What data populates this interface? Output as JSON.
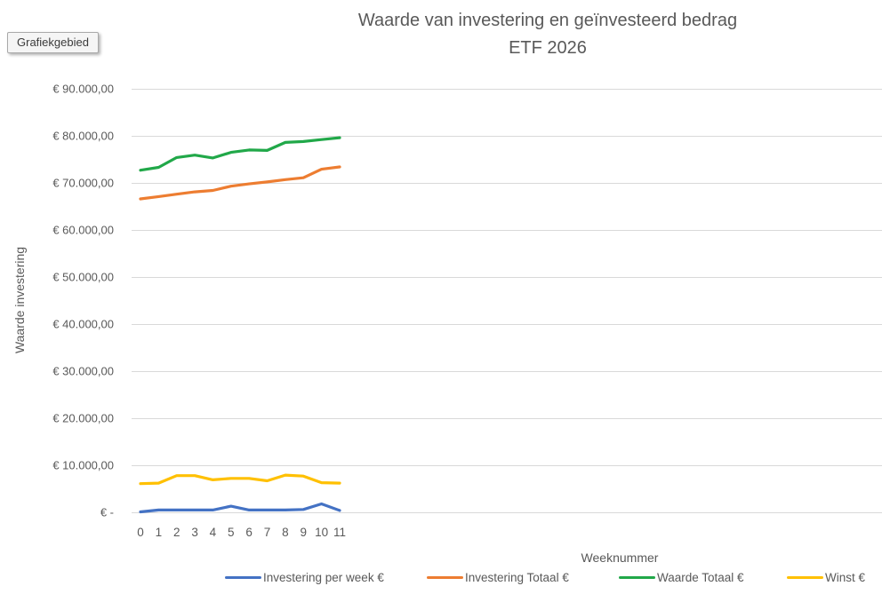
{
  "tooltip": {
    "label": "Grafiekgebied"
  },
  "title": {
    "line1": "Waarde van investering en geïnvesteerd bedrag",
    "line2": "ETF 2026"
  },
  "y_axis": {
    "title": "Waarde investering",
    "tick_labels": [
      "€ 90.000,00",
      "€ 80.000,00",
      "€ 70.000,00",
      "€ 60.000,00",
      "€ 50.000,00",
      "€ 40.000,00",
      "€ 30.000,00",
      "€ 20.000,00",
      "€ 10.000,00",
      "€ -"
    ]
  },
  "x_axis": {
    "title": "Weeknummer",
    "tick_labels": [
      "0",
      "1",
      "2",
      "3",
      "4",
      "5",
      "6",
      "7",
      "8",
      "9",
      "10",
      "11"
    ]
  },
  "colors": {
    "gridline": "#d9d9d9",
    "text": "#595959",
    "series_blue": "#4472C4",
    "series_orange": "#ED7D31",
    "series_green": "#21A849",
    "series_yellow": "#FFC000"
  },
  "chart_data": {
    "type": "line",
    "title": "Waarde van investering en geïnvesteerd bedrag ETF 2026",
    "xlabel": "Weeknummer",
    "ylabel": "Waarde investering",
    "x": [
      0,
      1,
      2,
      3,
      4,
      5,
      6,
      7,
      8,
      9,
      10,
      11
    ],
    "ylim": [
      0,
      90000
    ],
    "y_tick_step": 10000,
    "grid": true,
    "legend_position": "bottom",
    "series": [
      {
        "name": "Investering per week €",
        "color": "#4472C4",
        "values": [
          100,
          500,
          500,
          500,
          500,
          1300,
          500,
          500,
          500,
          600,
          1800,
          400
        ]
      },
      {
        "name": "Investering Totaal €",
        "color": "#ED7D31",
        "values": [
          66600,
          67100,
          67600,
          68100,
          68400,
          69300,
          69800,
          70200,
          70700,
          71100,
          72900,
          73400
        ]
      },
      {
        "name": "Waarde Totaal €",
        "color": "#21A849",
        "values": [
          72700,
          73300,
          75400,
          75900,
          75300,
          76500,
          77000,
          76900,
          78600,
          78800,
          79200,
          79600
        ]
      },
      {
        "name": "Winst €",
        "color": "#FFC000",
        "values": [
          6100,
          6200,
          7800,
          7800,
          6900,
          7200,
          7200,
          6700,
          7900,
          7700,
          6300,
          6200
        ]
      }
    ]
  }
}
